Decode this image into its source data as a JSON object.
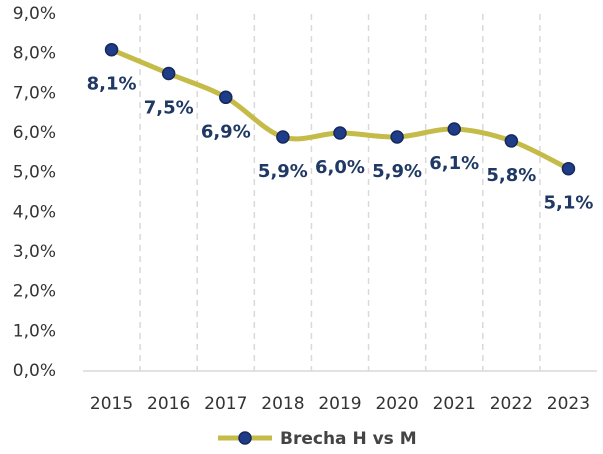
{
  "chart_data": {
    "type": "line",
    "categories": [
      "2015",
      "2016",
      "2017",
      "2018",
      "2019",
      "2020",
      "2021",
      "2022",
      "2023"
    ],
    "series": [
      {
        "name": "Brecha H vs M",
        "color": "#c4bb48",
        "marker_color": "#1f3c88",
        "values": [
          8.1,
          7.5,
          6.9,
          5.9,
          6.0,
          5.9,
          6.1,
          5.8,
          5.1
        ],
        "value_labels": [
          "8,1%",
          "7,5%",
          "6,9%",
          "5,9%",
          "6,0%",
          "5,9%",
          "6,1%",
          "5,8%",
          "5,1%"
        ]
      }
    ],
    "ylim": [
      0,
      9
    ],
    "yticks": [
      {
        "value": 0,
        "label": "0,0%"
      },
      {
        "value": 1,
        "label": "1,0%"
      },
      {
        "value": 2,
        "label": "2,0%"
      },
      {
        "value": 3,
        "label": "3,0%"
      },
      {
        "value": 4,
        "label": "4,0%"
      },
      {
        "value": 5,
        "label": "5,0%"
      },
      {
        "value": 6,
        "label": "6,0%"
      },
      {
        "value": 7,
        "label": "7,0%"
      },
      {
        "value": 8,
        "label": "8,0%"
      },
      {
        "value": 9,
        "label": "9,0%"
      }
    ],
    "grid": true,
    "legend": "bottom"
  }
}
